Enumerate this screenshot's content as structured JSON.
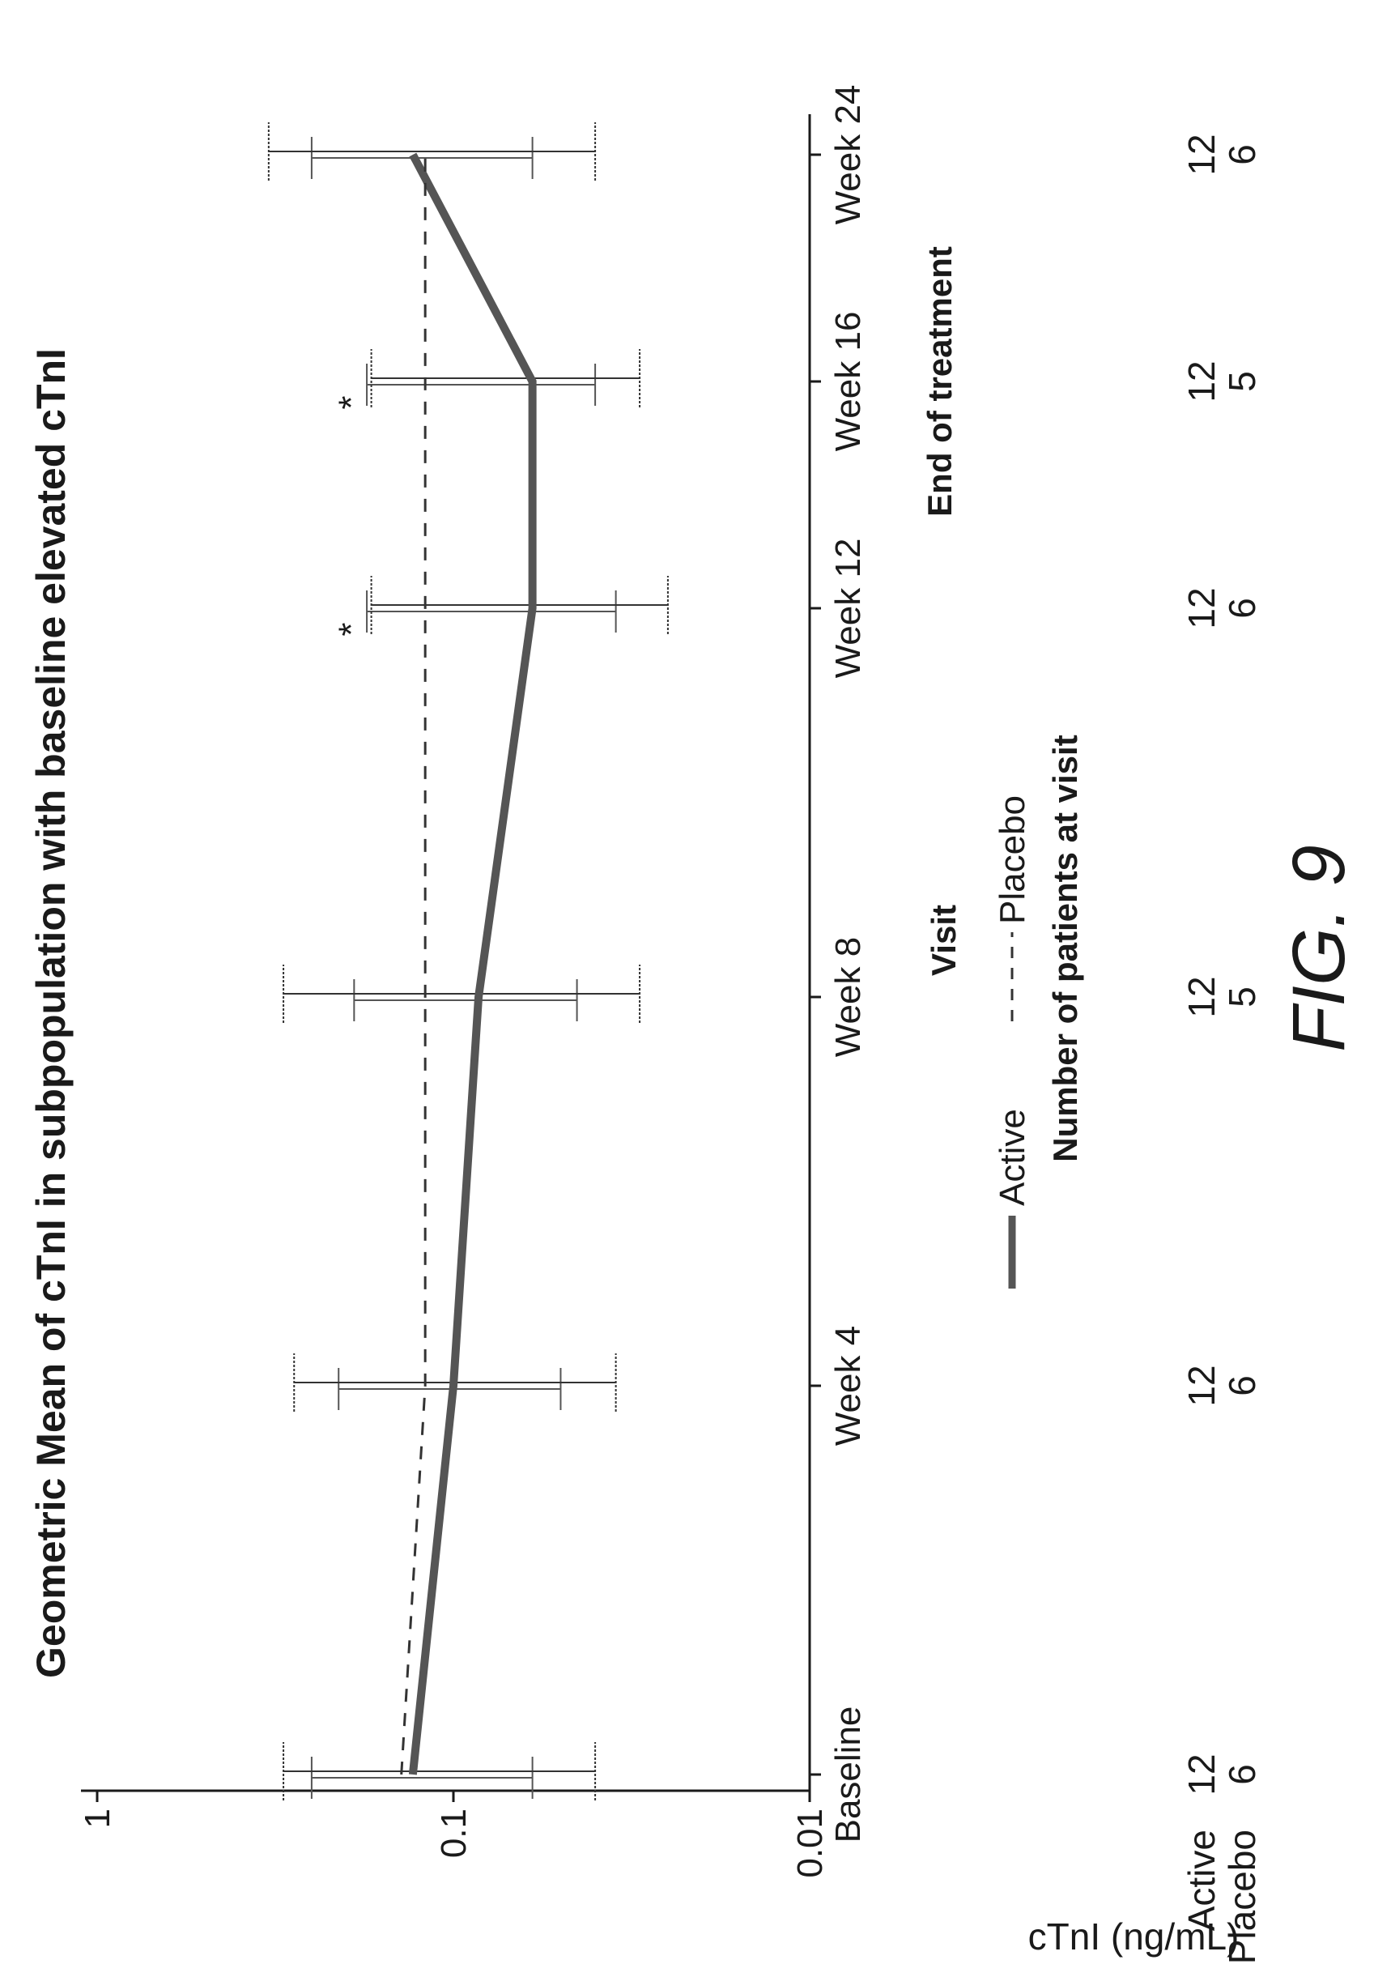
{
  "chart_data": {
    "type": "line",
    "title": "Geometric Mean of cTnI in subpopulation with baseline elevated cTnI",
    "xlabel": "Visit",
    "ylabel": "cTnI (ng/mL)",
    "y_scale": "log",
    "ylim": [
      0.01,
      1
    ],
    "y_ticks": [
      "0.01",
      "0.1",
      "1"
    ],
    "categories": [
      "Baseline",
      "Week 4",
      "Week 8",
      "Week 12",
      "Week 16",
      "Week 24"
    ],
    "x_sublabel": {
      "category": "Week 16",
      "text": "End of treatment"
    },
    "series": [
      {
        "name": "Active",
        "style": "solid",
        "values": [
          0.13,
          0.1,
          0.085,
          0.06,
          0.06,
          0.13
        ],
        "ci_lower": [
          0.06,
          0.05,
          0.045,
          0.035,
          0.04,
          0.06
        ],
        "ci_upper": [
          0.25,
          0.21,
          0.19,
          0.175,
          0.175,
          0.25
        ]
      },
      {
        "name": "Placebo",
        "style": "dashed",
        "values": [
          0.14,
          0.12,
          0.12,
          0.12,
          0.12,
          0.12
        ],
        "ci_lower": [
          0.04,
          0.035,
          0.03,
          0.025,
          0.03,
          0.04
        ],
        "ci_upper": [
          0.3,
          0.28,
          0.3,
          0.17,
          0.17,
          0.33
        ]
      }
    ],
    "annotations": [
      {
        "category": "Week 12",
        "text": "*"
      },
      {
        "category": "Week 16",
        "text": "*"
      }
    ],
    "legend": {
      "position": "bottom",
      "items": [
        "Active",
        "Placebo"
      ]
    },
    "grid": false
  },
  "patients_table": {
    "title": "Number of patients at visit",
    "rows": [
      {
        "label": "Active",
        "counts": [
          "12",
          "12",
          "12",
          "12",
          "12",
          "12"
        ]
      },
      {
        "label": "Placebo",
        "counts": [
          "6",
          "6",
          "5",
          "6",
          "5",
          "6"
        ]
      }
    ]
  },
  "figure_label": "FIG. 9"
}
